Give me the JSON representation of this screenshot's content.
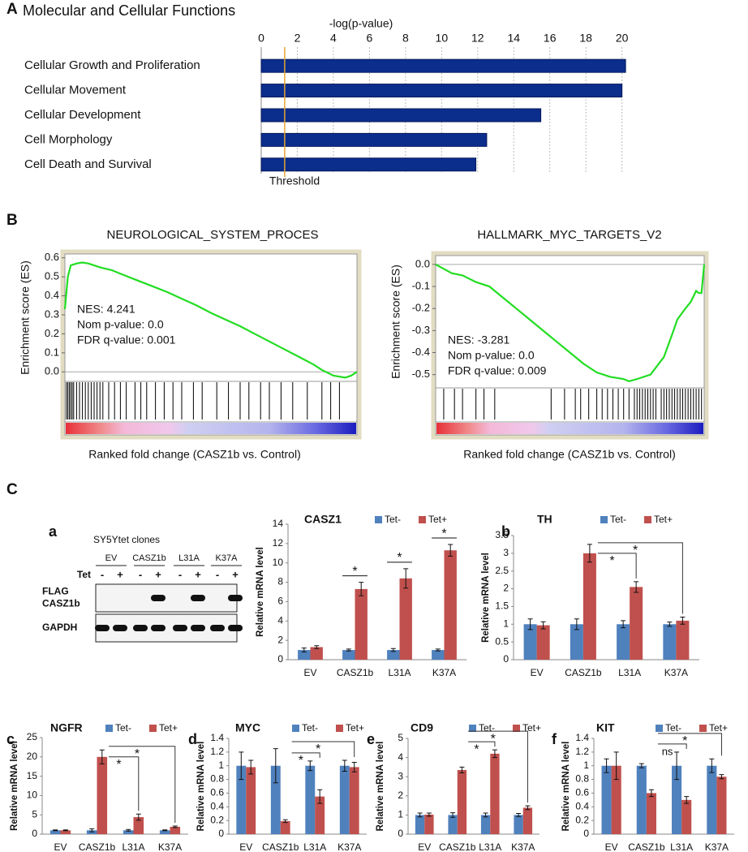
{
  "panel_labels": [
    "A",
    "B",
    "C",
    "a",
    "b",
    "c",
    "d",
    "e",
    "f"
  ],
  "blot": {
    "title": "SY5Ytet clones",
    "lanes": [
      "EV",
      "CASZ1b",
      "L31A",
      "K37A"
    ],
    "tet_label": "Tet",
    "tet": [
      "-",
      "+"
    ],
    "rows": [
      [
        "FLAG",
        "CASZ1b"
      ],
      [
        "GAPDH"
      ]
    ]
  },
  "chart_data": [
    {
      "type": "bar",
      "orientation": "horizontal",
      "title": "Molecular and Cellular Functions",
      "xlabel": "-log(p-value)",
      "categories": [
        "Cellular Growth and Proliferation",
        "Cellular Movement",
        "Cellular Development",
        "Cell Morphology",
        "Cell Death and Survival"
      ],
      "values": [
        20.2,
        20.0,
        15.5,
        12.5,
        11.9
      ],
      "color": "#0b2d8c",
      "xlim": [
        0,
        21.5
      ],
      "xticks": [
        0,
        2,
        4,
        6,
        8,
        10,
        12,
        14,
        16,
        18,
        20
      ],
      "grid": true,
      "threshold": {
        "value": 1.3,
        "label": "Threshold",
        "color": "#e6a532"
      }
    },
    {
      "type": "line",
      "title": "NEUROLOGICAL_SYSTEM_PROCES",
      "ylabel": "Enrichment score (ES)",
      "xlabel": "Ranked fold change (CASZ1b vs. Control)",
      "annotations": [
        "NES: 4.241",
        "Nom p-value: 0.0",
        "FDR q-value: 0.001"
      ],
      "color": "#22dd22",
      "x": [
        0,
        1,
        2,
        4,
        6,
        8,
        12,
        16,
        20,
        25,
        30,
        35,
        40,
        45,
        50,
        55,
        60,
        65,
        70,
        75,
        80,
        85,
        88,
        92,
        96,
        98,
        100
      ],
      "values": [
        0.33,
        0.5,
        0.56,
        0.57,
        0.575,
        0.57,
        0.55,
        0.535,
        0.51,
        0.48,
        0.45,
        0.42,
        0.385,
        0.35,
        0.31,
        0.275,
        0.24,
        0.2,
        0.16,
        0.12,
        0.08,
        0.04,
        0.01,
        -0.02,
        -0.03,
        -0.02,
        0.0
      ],
      "hits": [
        0.5,
        1,
        1.5,
        2,
        2.5,
        3,
        4,
        5,
        6,
        7,
        8,
        9,
        10,
        11,
        12,
        13,
        15,
        17,
        19,
        21,
        24,
        26,
        28,
        31,
        34,
        37,
        40,
        44,
        47,
        52,
        56,
        60,
        63,
        67,
        70,
        74,
        78,
        83,
        88,
        91,
        94
      ],
      "xlim": [
        0,
        100
      ],
      "ylim": [
        -0.05,
        0.62
      ],
      "yticks": [
        {
          "value": 0,
          "label": "0.0"
        },
        0.1,
        0.2,
        0.3,
        0.4,
        0.5,
        0.6
      ]
    },
    {
      "type": "line",
      "title": "HALLMARK_MYC_TARGETS_V2",
      "ylabel": "Enrichment score (ES)",
      "xlabel": "Ranked fold change (CASZ1b vs. Control)",
      "annotations": [
        "NES: -3.281",
        "Nom p-value: 0.0",
        "FDR q-value: 0.009"
      ],
      "color": "#22dd22",
      "x": [
        0,
        3,
        6,
        10,
        15,
        20,
        25,
        30,
        35,
        40,
        45,
        50,
        55,
        60,
        65,
        70,
        72,
        75,
        80,
        85,
        88,
        90,
        93,
        95,
        97,
        98,
        99,
        100
      ],
      "values": [
        0,
        -0.02,
        -0.04,
        -0.05,
        -0.08,
        -0.1,
        -0.15,
        -0.2,
        -0.25,
        -0.3,
        -0.35,
        -0.4,
        -0.45,
        -0.49,
        -0.51,
        -0.52,
        -0.53,
        -0.52,
        -0.5,
        -0.42,
        -0.32,
        -0.25,
        -0.2,
        -0.17,
        -0.12,
        -0.13,
        -0.13,
        0.0
      ],
      "hits": [
        3,
        7,
        10,
        15,
        18,
        22,
        43,
        48,
        52,
        54,
        57,
        60,
        62,
        64,
        66,
        68,
        70,
        72,
        74,
        75,
        76,
        77,
        78,
        79,
        80,
        81,
        82,
        84,
        85,
        86,
        87,
        88,
        89,
        90,
        91,
        92,
        93,
        94,
        95,
        96,
        97,
        98,
        99
      ],
      "xlim": [
        0,
        100
      ],
      "ylim": [
        -0.56,
        0.04
      ],
      "yticks": [
        {
          "value": 0,
          "label": "0.0"
        },
        -0.1,
        -0.2,
        -0.3,
        -0.4,
        -0.5
      ]
    },
    {
      "type": "bar",
      "title": "CASZ1",
      "ylabel": "Relative mRNA level",
      "categories": [
        "EV",
        "CASZ1b",
        "L31A",
        "K37A"
      ],
      "series": [
        {
          "name": "Tet-",
          "color": "#4f81bd",
          "values": [
            1,
            1,
            1,
            1
          ],
          "errors": [
            0.2,
            0.1,
            0.15,
            0.1
          ]
        },
        {
          "name": "Tet+",
          "color": "#c0504d",
          "values": [
            1.3,
            7.3,
            8.4,
            11.3
          ],
          "errors": [
            0.15,
            0.7,
            1.0,
            0.6
          ]
        }
      ],
      "ylim": [
        0,
        14
      ],
      "yticks": [
        0,
        2,
        4,
        6,
        8,
        10,
        12,
        14
      ],
      "annotations": [
        {
          "text": "*",
          "category": "CASZ1b"
        },
        {
          "text": "*",
          "category": "L31A"
        },
        {
          "text": "*",
          "category": "K37A"
        }
      ]
    },
    {
      "type": "bar",
      "title": "TH",
      "ylabel": "Relative mRNA level",
      "categories": [
        "EV",
        "CASZ1b",
        "L31A",
        "K37A"
      ],
      "series": [
        {
          "name": "Tet-",
          "color": "#4f81bd",
          "values": [
            1,
            1,
            1,
            1
          ],
          "errors": [
            0.15,
            0.15,
            0.1,
            0.06
          ]
        },
        {
          "name": "Tet+",
          "color": "#c0504d",
          "values": [
            0.97,
            3.0,
            2.05,
            1.1
          ],
          "errors": [
            0.1,
            0.25,
            0.15,
            0.1
          ]
        }
      ],
      "ylim": [
        0,
        3.5
      ],
      "yticks": [
        0,
        0.5,
        1,
        1.5,
        2,
        2.5,
        3,
        3.5
      ],
      "annotations": [
        {
          "text": "*",
          "between": [
            "CASZ1b",
            "L31A"
          ]
        },
        {
          "text": "*",
          "between": [
            "CASZ1b",
            "K37A"
          ]
        }
      ]
    },
    {
      "type": "bar",
      "title": "NGFR",
      "ylabel": "Relative mRNA level",
      "categories": [
        "EV",
        "CASZ1b",
        "L31A",
        "K37A"
      ],
      "series": [
        {
          "name": "Tet-",
          "color": "#4f81bd",
          "values": [
            1,
            1,
            1,
            1
          ],
          "errors": [
            0.1,
            0.4,
            0.2,
            0.1
          ]
        },
        {
          "name": "Tet+",
          "color": "#c0504d",
          "values": [
            1,
            20,
            4.4,
            1.9
          ],
          "errors": [
            0.1,
            1.8,
            0.8,
            0.2
          ]
        }
      ],
      "ylim": [
        0,
        25
      ],
      "yticks": [
        0,
        5,
        10,
        15,
        20,
        25
      ],
      "annotations": [
        {
          "text": "*",
          "between": [
            "CASZ1b",
            "L31A"
          ]
        },
        {
          "text": "*",
          "between": [
            "CASZ1b",
            "K37A"
          ]
        }
      ]
    },
    {
      "type": "bar",
      "title": "MYC",
      "ylabel": "Relative mRNA level",
      "categories": [
        "EV",
        "CASZ1b",
        "L31A",
        "K37A"
      ],
      "series": [
        {
          "name": "Tet-",
          "color": "#4f81bd",
          "values": [
            1,
            1,
            1,
            1
          ],
          "errors": [
            0.2,
            0.25,
            0.07,
            0.08
          ]
        },
        {
          "name": "Tet+",
          "color": "#c0504d",
          "values": [
            0.98,
            0.19,
            0.55,
            0.98
          ],
          "errors": [
            0.1,
            0.02,
            0.1,
            0.07
          ]
        }
      ],
      "ylim": [
        0,
        1.4
      ],
      "yticks": [
        0,
        0.2,
        0.4,
        0.6,
        0.8,
        1,
        1.2,
        1.4
      ],
      "annotations": [
        {
          "text": "*",
          "between": [
            "CASZ1b",
            "L31A"
          ]
        },
        {
          "text": "*",
          "between": [
            "CASZ1b",
            "K37A"
          ]
        }
      ]
    },
    {
      "type": "bar",
      "title": "CD9",
      "ylabel": "Relative mRNA level",
      "categories": [
        "EV",
        "CASZ1b",
        "L31A",
        "K37A"
      ],
      "series": [
        {
          "name": "Tet-",
          "color": "#4f81bd",
          "values": [
            1,
            1,
            1,
            1
          ],
          "errors": [
            0.1,
            0.12,
            0.1,
            0.08
          ]
        },
        {
          "name": "Tet+",
          "color": "#c0504d",
          "values": [
            1.02,
            3.35,
            4.2,
            1.38
          ],
          "errors": [
            0.08,
            0.15,
            0.2,
            0.1
          ]
        }
      ],
      "ylim": [
        0,
        5
      ],
      "yticks": [
        0,
        1,
        2,
        3,
        4,
        5
      ],
      "annotations": [
        {
          "text": "*",
          "between": [
            "CASZ1b",
            "L31A"
          ]
        },
        {
          "text": "*",
          "between": [
            "CASZ1b",
            "K37A"
          ]
        }
      ]
    },
    {
      "type": "bar",
      "title": "KIT",
      "ylabel": "Relative mRNA level",
      "categories": [
        "EV",
        "CASZ1b",
        "L31A",
        "K37A"
      ],
      "series": [
        {
          "name": "Tet-",
          "color": "#4f81bd",
          "values": [
            1,
            1,
            1,
            1
          ],
          "errors": [
            0.1,
            0.03,
            0.2,
            0.1
          ]
        },
        {
          "name": "Tet+",
          "color": "#c0504d",
          "values": [
            1,
            0.6,
            0.5,
            0.84
          ],
          "errors": [
            0.2,
            0.05,
            0.05,
            0.03
          ]
        }
      ],
      "ylim": [
        0,
        1.4
      ],
      "yticks": [
        0,
        0.2,
        0.4,
        0.6,
        0.8,
        1,
        1.2,
        1.4
      ],
      "annotations": [
        {
          "text": "ns",
          "between": [
            "CASZ1b",
            "L31A"
          ]
        },
        {
          "text": "*",
          "between": [
            "CASZ1b",
            "K37A"
          ]
        }
      ]
    }
  ]
}
